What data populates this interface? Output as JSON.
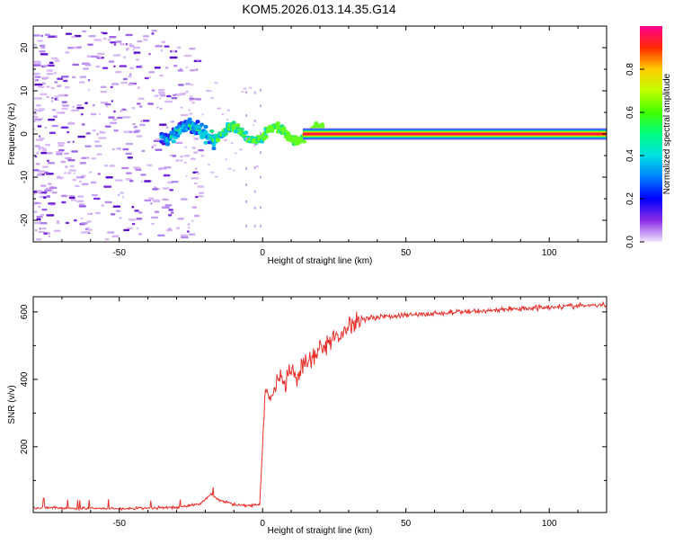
{
  "title": "KOM5.2026.013.14.35.G14",
  "colors": {
    "snr_line": "#e8302a",
    "axis": "#000000"
  },
  "chart_data": [
    {
      "type": "heatmap",
      "xlabel": "Height of straight line (km)",
      "ylabel": "Frequency (Hz)",
      "xlim": [
        -80,
        120
      ],
      "ylim": [
        -25,
        25
      ],
      "xticks": [
        -50,
        0,
        50,
        100
      ],
      "yticks": [
        -20,
        -10,
        0,
        10,
        20
      ],
      "colorbar": {
        "label": "Normalized spectral amplitude",
        "range": [
          0.0,
          1.0
        ],
        "ticks": [
          "0.0",
          "0.2",
          "0.4",
          "0.6",
          "0.8"
        ],
        "colormap": "rainbow (violet-blue-cyan-green-yellow-red-magenta)"
      },
      "features": [
        {
          "name": "noise speckles",
          "x_range": [
            -80,
            -30
          ],
          "freq_range": [
            -25,
            25
          ],
          "amplitude": 0.1
        },
        {
          "name": "transition blob",
          "x_range": [
            -35,
            20
          ],
          "freq_range": [
            -3,
            4
          ],
          "amplitude": 0.4
        },
        {
          "name": "carrier line",
          "x_range": [
            15,
            120
          ],
          "freq": 0.0,
          "amplitude": 1.0
        }
      ]
    },
    {
      "type": "line",
      "xlabel": "Height of straight line (km)",
      "ylabel": "SNR (v/v)",
      "xlim": [
        -80,
        120
      ],
      "ylim": [
        5,
        645
      ],
      "xticks": [
        -50,
        0,
        50,
        100
      ],
      "yticks": [
        200,
        400,
        600
      ],
      "series": [
        {
          "color": "#e8302a",
          "x": [
            -80,
            -70,
            -60,
            -50,
            -40,
            -30,
            -22,
            -18,
            -15,
            -10,
            -5,
            -1,
            0,
            1,
            3,
            5,
            8,
            10,
            12,
            15,
            18,
            20,
            22,
            25,
            28,
            30,
            35,
            40,
            50,
            60,
            70,
            80,
            90,
            100,
            110,
            120
          ],
          "values": [
            20,
            18,
            17,
            16,
            18,
            20,
            30,
            60,
            40,
            30,
            25,
            30,
            200,
            380,
            330,
            400,
            390,
            420,
            400,
            450,
            460,
            490,
            500,
            520,
            540,
            560,
            580,
            585,
            590,
            595,
            600,
            605,
            610,
            615,
            618,
            620
          ]
        }
      ]
    }
  ]
}
